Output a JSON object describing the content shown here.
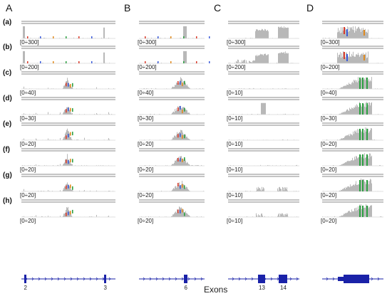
{
  "figure": {
    "panel_letters": [
      "A",
      "B",
      "C",
      "D"
    ],
    "row_labels": [
      "(a)",
      "(b)",
      "(c)",
      "(d)",
      "(e)",
      "(f)",
      "(g)",
      "(h)"
    ],
    "scales": {
      "A": [
        "[0÷300]",
        "[0÷200]",
        "[0÷40]",
        "[0÷30]",
        "[0÷20]",
        "[0÷20]",
        "[0÷20]",
        "[0÷20]"
      ],
      "B": [
        "[0÷300]",
        "[0÷200]",
        "[0÷40]",
        "[0÷30]",
        "[0÷20]",
        "[0÷20]",
        "[0÷20]",
        "[0÷20]"
      ],
      "C": [
        "[0÷300]",
        "[0÷200]",
        "[0÷10]",
        "[0÷10]",
        "[0÷10]",
        "[0÷10]",
        "[0÷10]",
        "[0÷10]"
      ],
      "D": [
        "[0÷300]",
        "[0÷200]",
        "[0÷40]",
        "[0÷30]",
        "[0÷20]",
        "[0÷20]",
        "[0÷20]",
        "[0÷20]"
      ]
    },
    "exon_labels": {
      "A": [
        "2",
        "3"
      ],
      "B": [
        "6"
      ],
      "C": [
        "13",
        "14"
      ],
      "D": []
    },
    "x_axis_title": "Exons",
    "colors": {
      "coverage": "#b8b8b8",
      "track_line": "#8a8a8a",
      "gene_model": "#1a22a8",
      "snv_green": "#2ea043",
      "snv_red": "#d93b2b",
      "snv_blue": "#3b5bd9",
      "snv_orange": "#e08a1e"
    }
  }
}
